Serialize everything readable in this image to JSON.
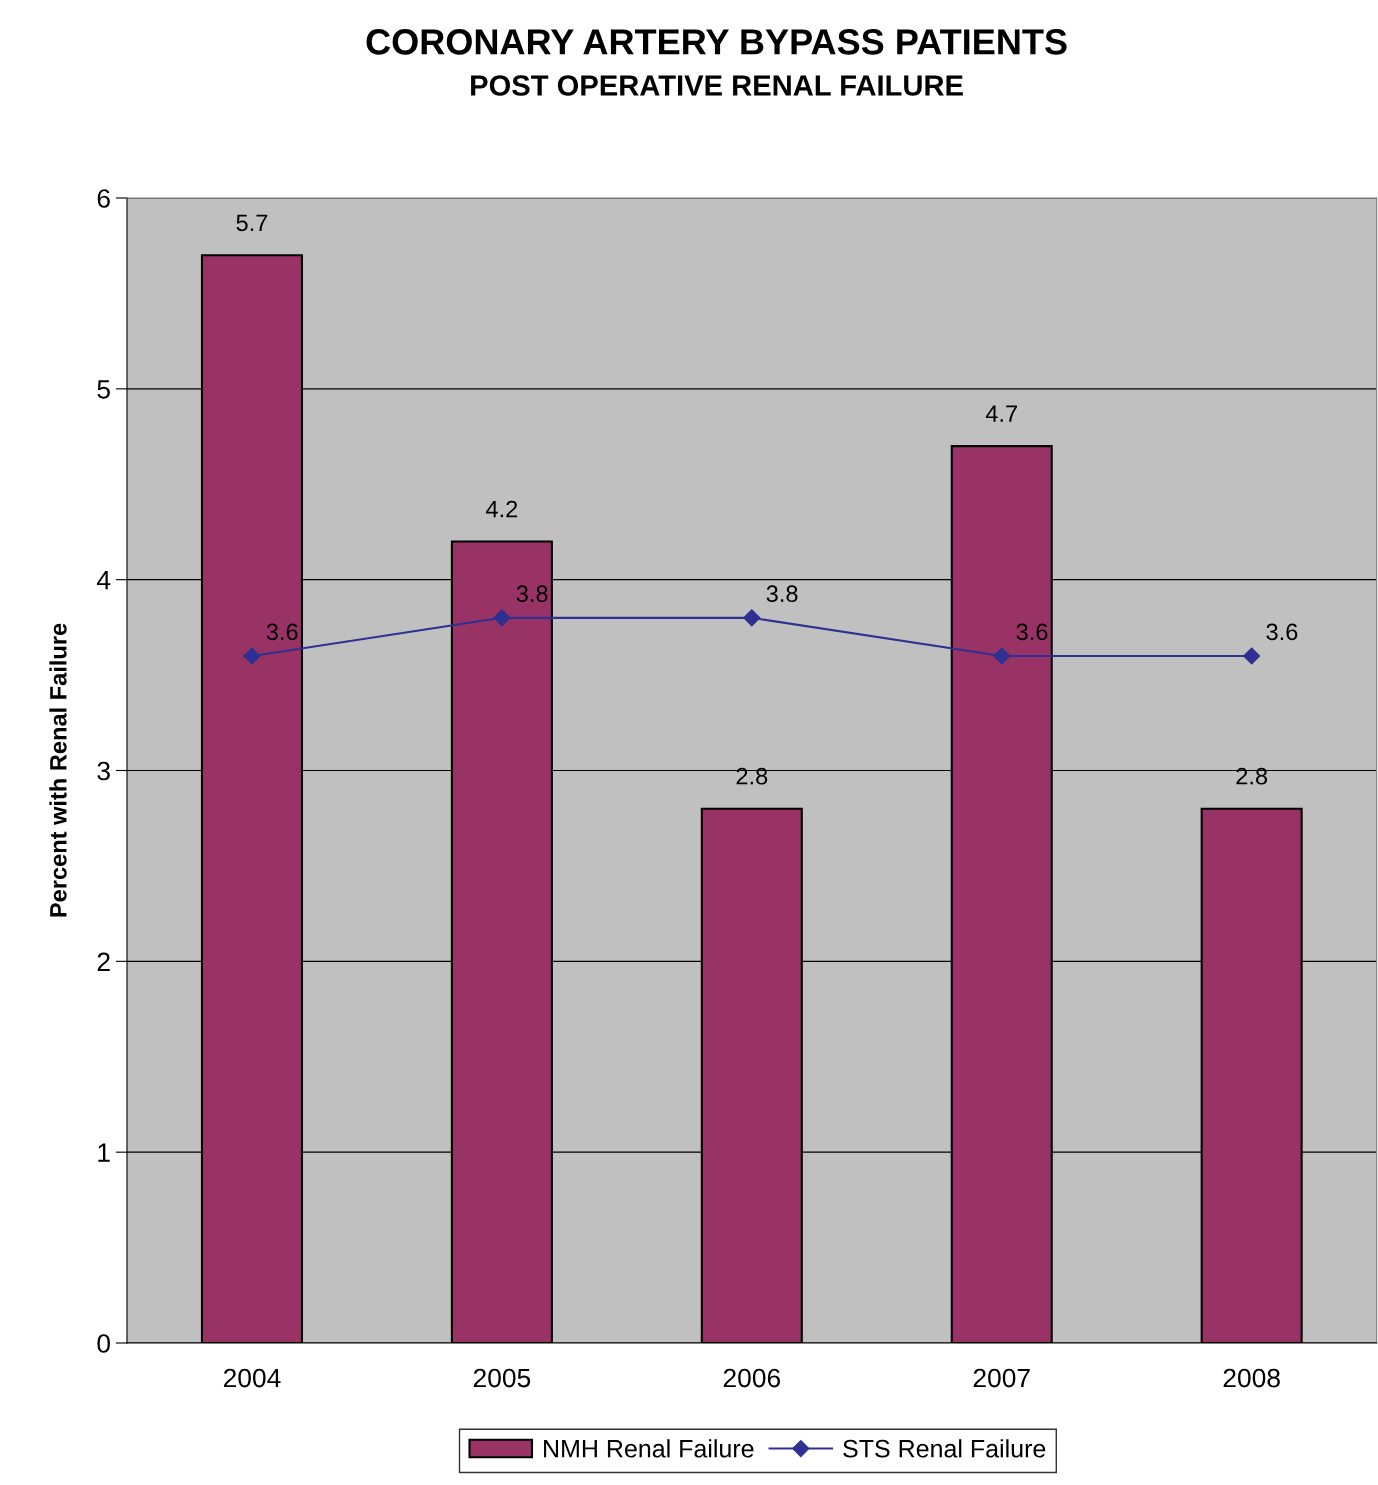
{
  "chart_data": {
    "type": "bar",
    "title": "CORONARY ARTERY BYPASS PATIENTS",
    "subtitle": "POST OPERATIVE RENAL FAILURE",
    "ylabel": "Percent with Renal Failure",
    "categories": [
      "2004",
      "2005",
      "2006",
      "2007",
      "2008"
    ],
    "series": [
      {
        "name": "NMH Renal Failure",
        "color": "#993366",
        "values": [
          5.7,
          4.2,
          2.8,
          4.7,
          2.8
        ]
      },
      {
        "name": "STS Renal Failure",
        "type": "line",
        "color": "#2e3192",
        "marker": "diamond",
        "values": [
          3.6,
          3.8,
          3.8,
          3.6,
          3.6
        ]
      }
    ],
    "ylim": [
      0,
      6
    ],
    "yticks": [
      0,
      1,
      2,
      3,
      4,
      5,
      6
    ],
    "grid": "y",
    "legend": "bottom",
    "data_labels": true
  }
}
